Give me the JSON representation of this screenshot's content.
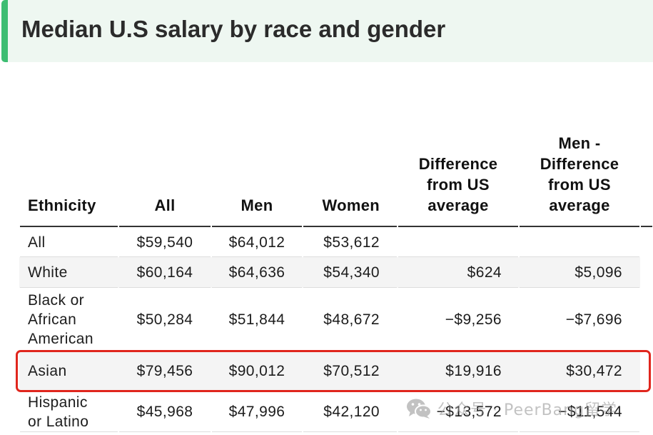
{
  "colors": {
    "accent": "#3dbd72",
    "title_bg": "#eef7f1",
    "highlight": "#e0261d",
    "stripe": "#f4f4f4",
    "header_rule": "#333333",
    "row_rule": "#dddddd"
  },
  "chart_data": {
    "type": "table",
    "title": "Median U.S salary by race and gender",
    "columns": [
      "Ethnicity",
      "All",
      "Men",
      "Women",
      "Difference from US average",
      "Men - Difference from US average"
    ],
    "rows": [
      [
        "All",
        "$59,540",
        "$64,012",
        "$53,612",
        "",
        ""
      ],
      [
        "White",
        "$60,164",
        "$64,636",
        "$54,340",
        "$624",
        "$5,096"
      ],
      [
        "Black or African American",
        "$50,284",
        "$51,844",
        "$48,672",
        "−$9,256",
        "−$7,696"
      ],
      [
        "Asian",
        "$79,456",
        "$90,012",
        "$70,512",
        "$19,916",
        "$30,472"
      ],
      [
        "Hispanic or Latino",
        "$45,968",
        "$47,996",
        "$42,120",
        "−$13,572",
        "−$11,544"
      ]
    ]
  },
  "highlight": {
    "row_index": 3
  },
  "watermark": {
    "icon": "wechat-icon",
    "text": "公众号 · PeerBang留学"
  }
}
